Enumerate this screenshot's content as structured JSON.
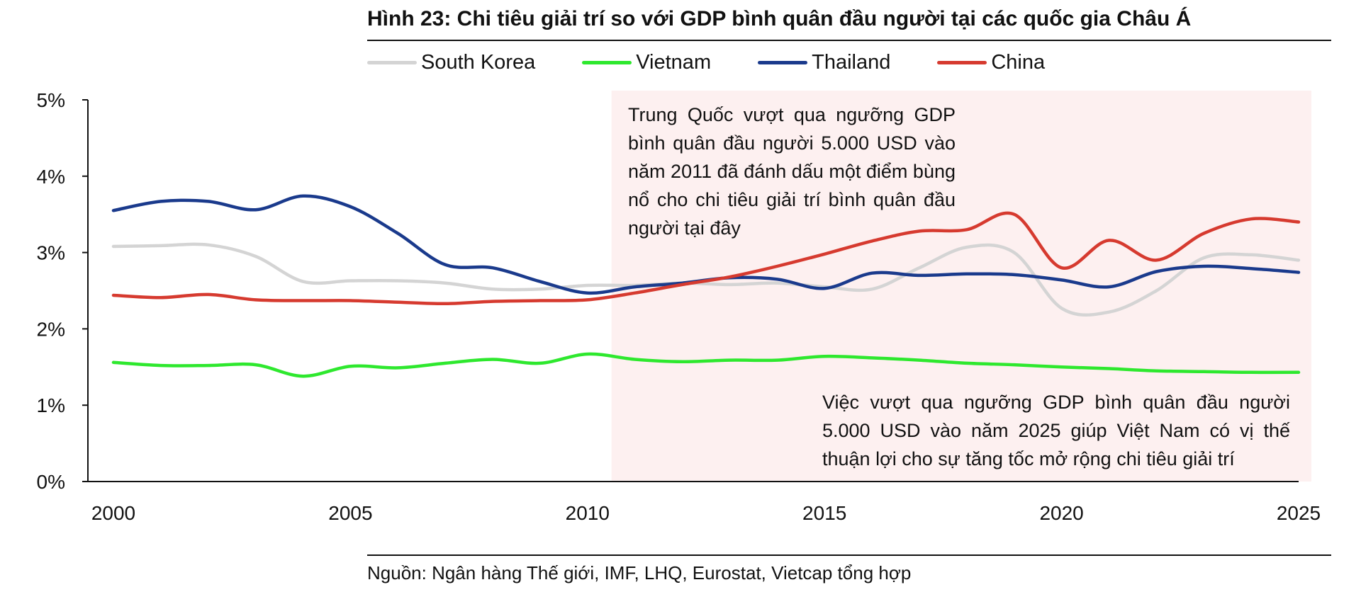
{
  "title": "Hình 23: Chi tiêu giải trí so với GDP bình quân đầu người tại các quốc gia Châu Á",
  "source": "Nguồn: Ngân hàng Thế giới, IMF, LHQ, Eurostat, Vietcap tổng hợp",
  "annotations": {
    "china": "Trung Quốc vượt qua ngưỡng GDP bình quân đầu người 5.000 USD vào năm 2011 đã đánh dấu một điểm bùng nổ cho chi tiêu giải trí bình quân đầu người tại đây",
    "vietnam": "Việc vượt qua ngưỡng GDP bình quân đầu người 5.000 USD vào năm 2025 giúp Việt Nam có vị thế thuận lợi cho sự tăng tốc mở rộng chi tiêu giải trí"
  },
  "colors": {
    "south_korea": "#d4d4d4",
    "vietnam": "#2ee82e",
    "thailand": "#1a3a8c",
    "china": "#d63a2f",
    "highlight": "#fdf0f0",
    "axis": "#111111"
  },
  "chart_data": {
    "type": "line",
    "x": [
      2000,
      2001,
      2002,
      2003,
      2004,
      2005,
      2006,
      2007,
      2008,
      2009,
      2010,
      2011,
      2012,
      2013,
      2014,
      2015,
      2016,
      2017,
      2018,
      2019,
      2020,
      2021,
      2022,
      2023,
      2024,
      2025
    ],
    "x_ticks": [
      "2000",
      "2005",
      "2010",
      "2015",
      "2020",
      "2025"
    ],
    "x_tick_values": [
      2000,
      2005,
      2010,
      2015,
      2020,
      2025
    ],
    "ylim": [
      0,
      5
    ],
    "y_ticks": [
      "0%",
      "1%",
      "2%",
      "3%",
      "4%",
      "5%"
    ],
    "y_tick_values": [
      0,
      1,
      2,
      3,
      4,
      5
    ],
    "grid": false,
    "legend_position": "top-left",
    "highlight_range": [
      2011,
      2025
    ],
    "series": [
      {
        "name": "South Korea",
        "color_key": "south_korea",
        "values": [
          3.08,
          3.09,
          3.1,
          2.95,
          2.62,
          2.63,
          2.63,
          2.6,
          2.52,
          2.52,
          2.57,
          2.57,
          2.6,
          2.58,
          2.6,
          2.55,
          2.52,
          2.8,
          3.07,
          3.0,
          2.27,
          2.22,
          2.5,
          2.93,
          2.97,
          2.9
        ]
      },
      {
        "name": "Vietnam",
        "color_key": "vietnam",
        "values": [
          1.56,
          1.52,
          1.52,
          1.53,
          1.38,
          1.51,
          1.49,
          1.55,
          1.6,
          1.55,
          1.67,
          1.6,
          1.57,
          1.59,
          1.59,
          1.64,
          1.62,
          1.59,
          1.55,
          1.53,
          1.5,
          1.48,
          1.45,
          1.44,
          1.43,
          1.43
        ]
      },
      {
        "name": "Thailand",
        "color_key": "thailand",
        "values": [
          3.55,
          3.67,
          3.67,
          3.56,
          3.74,
          3.6,
          3.25,
          2.84,
          2.8,
          2.62,
          2.47,
          2.55,
          2.6,
          2.67,
          2.65,
          2.53,
          2.73,
          2.7,
          2.72,
          2.71,
          2.64,
          2.55,
          2.75,
          2.82,
          2.79,
          2.74
        ]
      },
      {
        "name": "China",
        "color_key": "china",
        "values": [
          2.44,
          2.41,
          2.45,
          2.38,
          2.37,
          2.37,
          2.35,
          2.33,
          2.36,
          2.37,
          2.38,
          2.47,
          2.58,
          2.68,
          2.82,
          2.98,
          3.15,
          3.28,
          3.3,
          3.5,
          2.8,
          3.16,
          2.9,
          3.25,
          3.44,
          3.4
        ]
      }
    ]
  }
}
